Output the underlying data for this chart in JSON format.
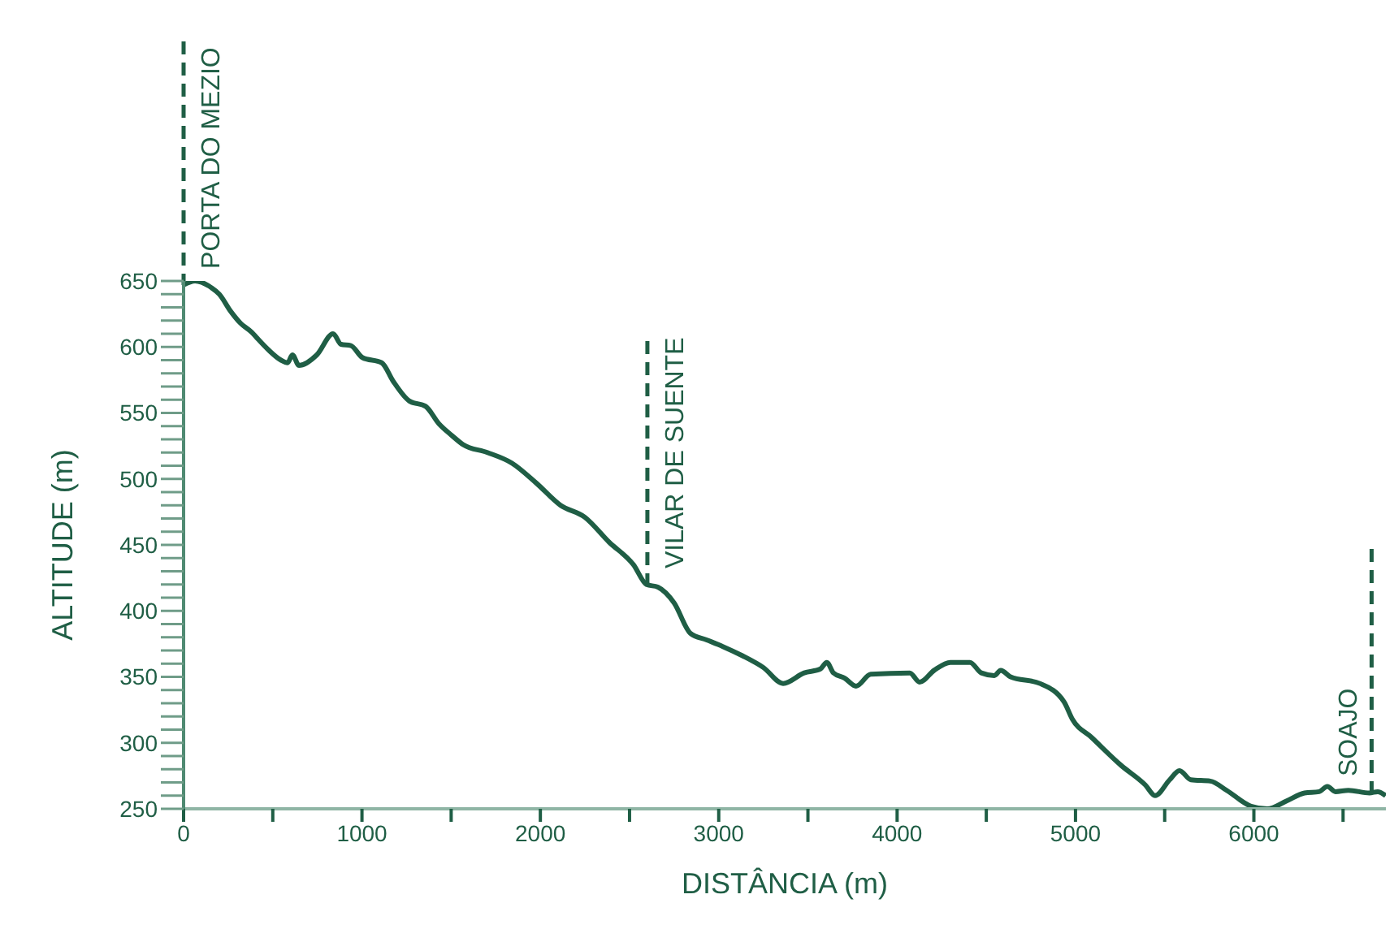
{
  "chart_data": {
    "type": "line",
    "xlabel": "DISTÂNCIA (m)",
    "ylabel": "ALTITUDE (m)",
    "x": [
      0,
      64,
      155,
      200,
      264,
      319,
      383,
      410,
      474,
      546,
      583,
      610,
      647,
      747,
      838,
      883,
      938,
      1002,
      1111,
      1175,
      1266,
      1357,
      1430,
      1503,
      1567,
      1703,
      1840,
      1976,
      2113,
      2249,
      2386,
      2522,
      2595,
      2659,
      2750,
      2841,
      2932,
      3023,
      3133,
      3251,
      3361,
      3479,
      3570,
      3606,
      3643,
      3706,
      3770,
      3852,
      4071,
      4126,
      4208,
      4299,
      4408,
      4472,
      4545,
      4581,
      4636,
      4800,
      4936,
      4982,
      5091,
      5255,
      5392,
      5446,
      5528,
      5583,
      5647,
      5756,
      5847,
      5984,
      6075,
      6184,
      6284,
      6366,
      6412,
      6457,
      6530,
      6648,
      6694,
      6739
    ],
    "series": [
      {
        "color": "#1f5e45",
        "values": [
          647,
          650,
          645,
          640,
          627,
          618,
          611,
          607,
          598,
          590,
          588,
          594,
          586,
          594,
          610,
          602,
          601,
          592,
          588,
          574,
          559,
          555,
          542,
          533,
          526,
          520,
          512,
          497,
          480,
          471,
          452,
          435,
          420,
          418,
          406,
          383,
          378,
          373,
          366,
          357,
          345,
          353,
          356,
          361,
          353,
          349,
          343,
          352,
          353,
          346,
          355,
          361,
          361,
          353,
          351,
          355,
          350,
          345,
          331,
          318,
          304,
          283,
          268,
          260,
          272,
          279,
          272,
          271,
          264,
          252,
          250,
          256,
          262,
          263,
          267,
          263,
          264,
          262,
          263,
          260
        ]
      }
    ],
    "xlim": [
      0,
      6740
    ],
    "xticks": [
      0,
      {
        "value": 500,
        "label": null
      },
      1000,
      {
        "value": 1500,
        "label": null
      },
      2000,
      {
        "value": 2500,
        "label": null
      },
      3000,
      {
        "value": 3500,
        "label": null
      },
      4000,
      {
        "value": 4500,
        "label": null
      },
      5000,
      {
        "value": 5500,
        "label": null
      },
      6000,
      {
        "value": 6500,
        "label": null
      }
    ],
    "ylim": [
      250,
      650
    ],
    "yticks": [
      250,
      {
        "value": 260,
        "label": null
      },
      {
        "value": 270,
        "label": null
      },
      {
        "value": 280,
        "label": null
      },
      {
        "value": 290,
        "label": null
      },
      300,
      {
        "value": 310,
        "label": null
      },
      {
        "value": 320,
        "label": null
      },
      {
        "value": 330,
        "label": null
      },
      {
        "value": 340,
        "label": null
      },
      350,
      {
        "value": 360,
        "label": null
      },
      {
        "value": 370,
        "label": null
      },
      {
        "value": 380,
        "label": null
      },
      {
        "value": 390,
        "label": null
      },
      400,
      {
        "value": 410,
        "label": null
      },
      {
        "value": 420,
        "label": null
      },
      {
        "value": 430,
        "label": null
      },
      {
        "value": 440,
        "label": null
      },
      450,
      {
        "value": 460,
        "label": null
      },
      {
        "value": 470,
        "label": null
      },
      {
        "value": 480,
        "label": null
      },
      {
        "value": 490,
        "label": null
      },
      500,
      {
        "value": 510,
        "label": null
      },
      {
        "value": 520,
        "label": null
      },
      {
        "value": 530,
        "label": null
      },
      {
        "value": 540,
        "label": null
      },
      550,
      {
        "value": 560,
        "label": null
      },
      {
        "value": 570,
        "label": null
      },
      {
        "value": 580,
        "label": null
      },
      {
        "value": 590,
        "label": null
      },
      600,
      {
        "value": 610,
        "label": null
      },
      {
        "value": 620,
        "label": null
      },
      {
        "value": 630,
        "label": null
      },
      {
        "value": 640,
        "label": null
      },
      650
    ],
    "grid": false,
    "legend": false,
    "marker": "none",
    "line_style": "solid",
    "ref_lines": [
      {
        "axis": "x",
        "value": 0,
        "label": "PORTA DO MEZIO",
        "color": "#1f5e45",
        "line_style": "dashed"
      },
      {
        "axis": "x",
        "value": 2600,
        "label": "VILAR DE SUENTE",
        "color": "#1f5e45",
        "line_style": "dashed"
      },
      {
        "axis": "x",
        "value": 6660,
        "label": "SOAJO",
        "color": "#1f5e45",
        "line_style": "dashed"
      }
    ]
  }
}
